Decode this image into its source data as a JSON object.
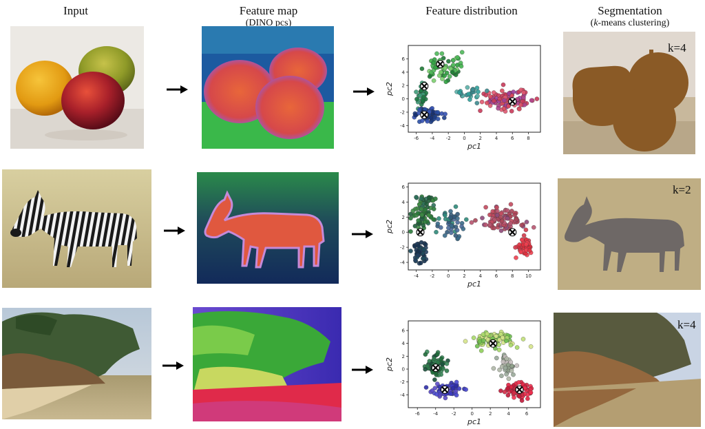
{
  "headers": {
    "input": "Input",
    "feature_map": "Feature map",
    "feature_map_sub": "(DINO pcs)",
    "distribution": "Feature distribution",
    "segmentation": "Segmentation",
    "segmentation_sub_k": "k",
    "segmentation_sub_rest": "-means clustering)",
    "segmentation_sub_open": "("
  },
  "rows": [
    {
      "scene": "fruit (orange, apple, peach)",
      "k_label": "k=4"
    },
    {
      "scene": "zebra on grassland",
      "k_label": "k=2"
    },
    {
      "scene": "coastal cliff with trees and beach",
      "k_label": "k=4"
    }
  ],
  "chart_data": [
    {
      "type": "scatter",
      "xlabel": "pc1",
      "ylabel": "pc2",
      "xticks": [
        -6,
        -4,
        -2,
        0,
        2,
        4,
        6,
        8
      ],
      "yticks": [
        -4,
        -2,
        0,
        2,
        4,
        6
      ],
      "xlim": [
        -7,
        9.5
      ],
      "ylim": [
        -5,
        8
      ],
      "centroids": [
        [
          -3,
          5.2
        ],
        [
          -5,
          1.9
        ],
        [
          -5,
          -2.4
        ],
        [
          6,
          -0.4
        ]
      ],
      "clusters": [
        {
          "center": [
            -2.5,
            4.5
          ],
          "spread": [
            1.8,
            1.6
          ],
          "n": 70,
          "colors": [
            "#2e9e3e",
            "#4fb85a",
            "#7ccf6f",
            "#1f7a36"
          ]
        },
        {
          "center": [
            -5.2,
            0.5
          ],
          "spread": [
            0.6,
            1.4
          ],
          "n": 35,
          "colors": [
            "#1e7a45",
            "#2a8a63",
            "#3d9b78"
          ]
        },
        {
          "center": [
            -4.5,
            -2.4
          ],
          "spread": [
            1.3,
            0.9
          ],
          "n": 70,
          "colors": [
            "#1e3f8a",
            "#2a4fa6",
            "#173273",
            "#3350b0"
          ]
        },
        {
          "center": [
            5.2,
            -0.2
          ],
          "spread": [
            2.2,
            1.3
          ],
          "n": 110,
          "colors": [
            "#c93a5a",
            "#b0458f",
            "#d94a5e",
            "#a03f9a",
            "#e05870"
          ]
        },
        {
          "center": [
            0.5,
            0.8
          ],
          "spread": [
            1.6,
            1.0
          ],
          "n": 25,
          "colors": [
            "#2f9f9a",
            "#5bb0a8",
            "#3d8a8f"
          ]
        }
      ]
    },
    {
      "type": "scatter",
      "xlabel": "pc1",
      "ylabel": "pc2",
      "xticks": [
        -4,
        -2,
        0,
        2,
        4,
        6,
        8,
        10
      ],
      "yticks": [
        -4,
        -2,
        0,
        2,
        4,
        6
      ],
      "xlim": [
        -5,
        11.5
      ],
      "ylim": [
        -5,
        6.5
      ],
      "centroids": [
        [
          -3.5,
          0
        ],
        [
          8,
          0
        ]
      ],
      "clusters": [
        {
          "center": [
            -3.2,
            2.8
          ],
          "spread": [
            1.2,
            1.8
          ],
          "n": 80,
          "colors": [
            "#2a7a3a",
            "#1f5e3a",
            "#3e8a45",
            "#2e6f5a"
          ]
        },
        {
          "center": [
            -3.6,
            -2.5
          ],
          "spread": [
            0.7,
            1.2
          ],
          "n": 50,
          "colors": [
            "#17324f",
            "#1e4a5c",
            "#234060"
          ]
        },
        {
          "center": [
            0.5,
            1.0
          ],
          "spread": [
            1.6,
            1.6
          ],
          "n": 45,
          "colors": [
            "#3a6a8a",
            "#4a6a9a",
            "#345a7a",
            "#2f8a7a"
          ]
        },
        {
          "center": [
            6.5,
            1.8
          ],
          "spread": [
            2.2,
            1.3
          ],
          "n": 90,
          "colors": [
            "#a8475a",
            "#c24a5e",
            "#8f4a7a",
            "#b85570"
          ]
        },
        {
          "center": [
            9.5,
            -1.8
          ],
          "spread": [
            1.0,
            1.3
          ],
          "n": 45,
          "colors": [
            "#e0303e",
            "#d23a4a",
            "#f04050"
          ]
        }
      ]
    },
    {
      "type": "scatter",
      "xlabel": "pc1",
      "ylabel": "pc2",
      "xticks": [
        -6,
        -4,
        -2,
        0,
        2,
        4,
        6
      ],
      "yticks": [
        -4,
        -2,
        0,
        2,
        4,
        6
      ],
      "xlim": [
        -7,
        7.5
      ],
      "ylim": [
        -6,
        7.5
      ],
      "centroids": [
        [
          2.3,
          4
        ],
        [
          -4,
          0.2
        ],
        [
          -3,
          -3.2
        ],
        [
          5.2,
          -3.2
        ]
      ],
      "clusters": [
        {
          "center": [
            2.5,
            4.6
          ],
          "spread": [
            2.2,
            1.2
          ],
          "n": 90,
          "colors": [
            "#8fcf5a",
            "#a8d96a",
            "#c2e07a",
            "#6fbf4f",
            "#d6e48a"
          ]
        },
        {
          "center": [
            -4.0,
            0.5
          ],
          "spread": [
            1.0,
            1.6
          ],
          "n": 70,
          "colors": [
            "#1f6a3a",
            "#2e7a4a",
            "#194f3a",
            "#3a8a5a"
          ]
        },
        {
          "center": [
            -2.8,
            -3.3
          ],
          "spread": [
            1.4,
            0.9
          ],
          "n": 60,
          "colors": [
            "#3a3ac0",
            "#4a4ad0",
            "#2f2fa8",
            "#5a4ac8"
          ]
        },
        {
          "center": [
            3.8,
            0.8
          ],
          "spread": [
            0.8,
            1.6
          ],
          "n": 40,
          "colors": [
            "#9aaa9a",
            "#b0b8a8",
            "#c8c0c0",
            "#8fa08a"
          ]
        },
        {
          "center": [
            5.2,
            -3.3
          ],
          "spread": [
            1.2,
            1.1
          ],
          "n": 70,
          "colors": [
            "#e02040",
            "#c01a3a",
            "#f03050",
            "#d02a45"
          ]
        }
      ]
    }
  ]
}
